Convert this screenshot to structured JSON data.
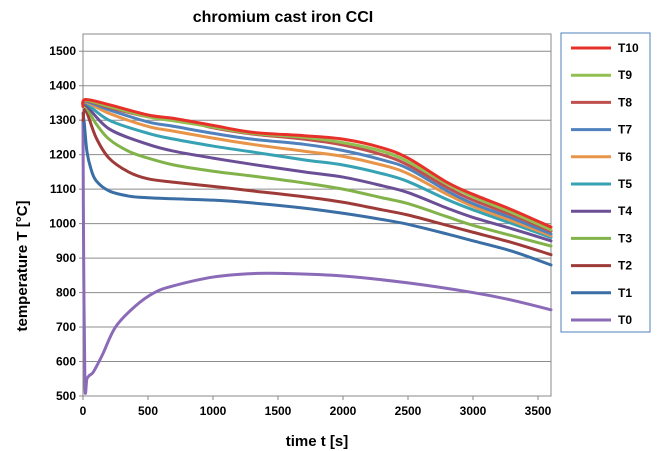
{
  "chart_data": {
    "type": "line",
    "title": "chromium cast iron CCI",
    "xlabel": "time t [s]",
    "ylabel": "temperature T [°C]",
    "xlim": [
      0,
      3600
    ],
    "ylim": [
      500,
      1550
    ],
    "xticks": [
      0,
      500,
      1000,
      1500,
      2000,
      2500,
      3000,
      3500
    ],
    "yticks": [
      500,
      600,
      700,
      800,
      900,
      1000,
      1100,
      1200,
      1300,
      1400,
      1500
    ],
    "grid": "horizontal",
    "legend_position": "right",
    "series": [
      {
        "name": "T10",
        "color": "#e8302a",
        "x": [
          0,
          20,
          200,
          500,
          700,
          1000,
          1300,
          1700,
          2000,
          2300,
          2500,
          2800,
          3000,
          3300,
          3600
        ],
        "y": [
          1340,
          1360,
          1345,
          1315,
          1305,
          1285,
          1265,
          1255,
          1245,
          1220,
          1190,
          1120,
          1085,
          1040,
          990
        ]
      },
      {
        "name": "T9",
        "color": "#92c050",
        "x": [
          0,
          20,
          200,
          500,
          700,
          1000,
          1300,
          1700,
          2000,
          2300,
          2500,
          2800,
          3000,
          3300,
          3600
        ],
        "y": [
          1340,
          1358,
          1340,
          1310,
          1298,
          1280,
          1262,
          1250,
          1235,
          1210,
          1180,
          1115,
          1078,
          1032,
          982
        ]
      },
      {
        "name": "T8",
        "color": "#c0504d",
        "x": [
          0,
          20,
          200,
          500,
          700,
          1000,
          1300,
          1700,
          2000,
          2300,
          2500,
          2800,
          3000,
          3300,
          3600
        ],
        "y": [
          1340,
          1357,
          1337,
          1310,
          1305,
          1278,
          1260,
          1245,
          1228,
          1200,
          1170,
          1105,
          1068,
          1025,
          978
        ]
      },
      {
        "name": "T7",
        "color": "#4f81bd",
        "x": [
          0,
          20,
          200,
          500,
          700,
          1000,
          1300,
          1700,
          2000,
          2300,
          2500,
          2800,
          3000,
          3300,
          3600
        ],
        "y": [
          1340,
          1355,
          1330,
          1295,
          1282,
          1262,
          1245,
          1230,
          1212,
          1185,
          1160,
          1095,
          1058,
          1016,
          970
        ]
      },
      {
        "name": "T6",
        "color": "#e8954a",
        "x": [
          0,
          20,
          200,
          500,
          700,
          1000,
          1300,
          1700,
          2000,
          2300,
          2500,
          2800,
          3000,
          3300,
          3600
        ],
        "y": [
          1340,
          1353,
          1320,
          1282,
          1268,
          1248,
          1230,
          1210,
          1195,
          1170,
          1145,
          1085,
          1050,
          1008,
          965
        ]
      },
      {
        "name": "T5",
        "color": "#36a2b4",
        "x": [
          0,
          20,
          200,
          500,
          700,
          1000,
          1300,
          1700,
          2000,
          2300,
          2500,
          2800,
          3000,
          3300,
          3600
        ],
        "y": [
          1340,
          1350,
          1300,
          1262,
          1245,
          1225,
          1208,
          1185,
          1170,
          1145,
          1122,
          1070,
          1040,
          1000,
          960
        ]
      },
      {
        "name": "T4",
        "color": "#6b4f96",
        "x": [
          0,
          20,
          200,
          500,
          700,
          1000,
          1300,
          1700,
          2000,
          2300,
          2500,
          2800,
          3000,
          3300,
          3600
        ],
        "y": [
          1340,
          1345,
          1275,
          1230,
          1210,
          1190,
          1172,
          1150,
          1135,
          1110,
          1090,
          1045,
          1018,
          985,
          950
        ]
      },
      {
        "name": "T3",
        "color": "#82b34a",
        "x": [
          0,
          20,
          100,
          200,
          350,
          500,
          700,
          1000,
          1300,
          1700,
          2000,
          2300,
          2500,
          2800,
          3000,
          3300,
          3600
        ],
        "y": [
          1340,
          1340,
          1290,
          1245,
          1210,
          1190,
          1170,
          1152,
          1138,
          1118,
          1100,
          1075,
          1058,
          1020,
          995,
          965,
          935
        ]
      },
      {
        "name": "T2",
        "color": "#9e3b38",
        "x": [
          0,
          20,
          100,
          200,
          350,
          500,
          700,
          1000,
          1300,
          1700,
          2000,
          2300,
          2500,
          2800,
          3000,
          3300,
          3600
        ],
        "y": [
          1300,
          1330,
          1250,
          1190,
          1150,
          1130,
          1120,
          1108,
          1095,
          1078,
          1062,
          1040,
          1025,
          995,
          975,
          945,
          910
        ]
      },
      {
        "name": "T1",
        "color": "#3a6ea5",
        "x": [
          0,
          10,
          30,
          60,
          100,
          200,
          350,
          500,
          700,
          1000,
          1300,
          1700,
          2000,
          2300,
          2500,
          2800,
          3000,
          3300,
          3600
        ],
        "y": [
          1320,
          1290,
          1210,
          1160,
          1125,
          1095,
          1080,
          1075,
          1072,
          1068,
          1060,
          1045,
          1030,
          1012,
          998,
          970,
          950,
          920,
          880
        ]
      },
      {
        "name": "T0",
        "color": "#8b6bb8",
        "x": [
          0,
          5,
          15,
          30,
          50,
          80,
          150,
          250,
          400,
          550,
          700,
          1000,
          1300,
          1600,
          2000,
          2500,
          3000,
          3300,
          3600
        ],
        "y": [
          1300,
          900,
          530,
          550,
          560,
          570,
          620,
          700,
          760,
          800,
          820,
          845,
          855,
          855,
          848,
          828,
          800,
          778,
          750
        ]
      }
    ]
  }
}
